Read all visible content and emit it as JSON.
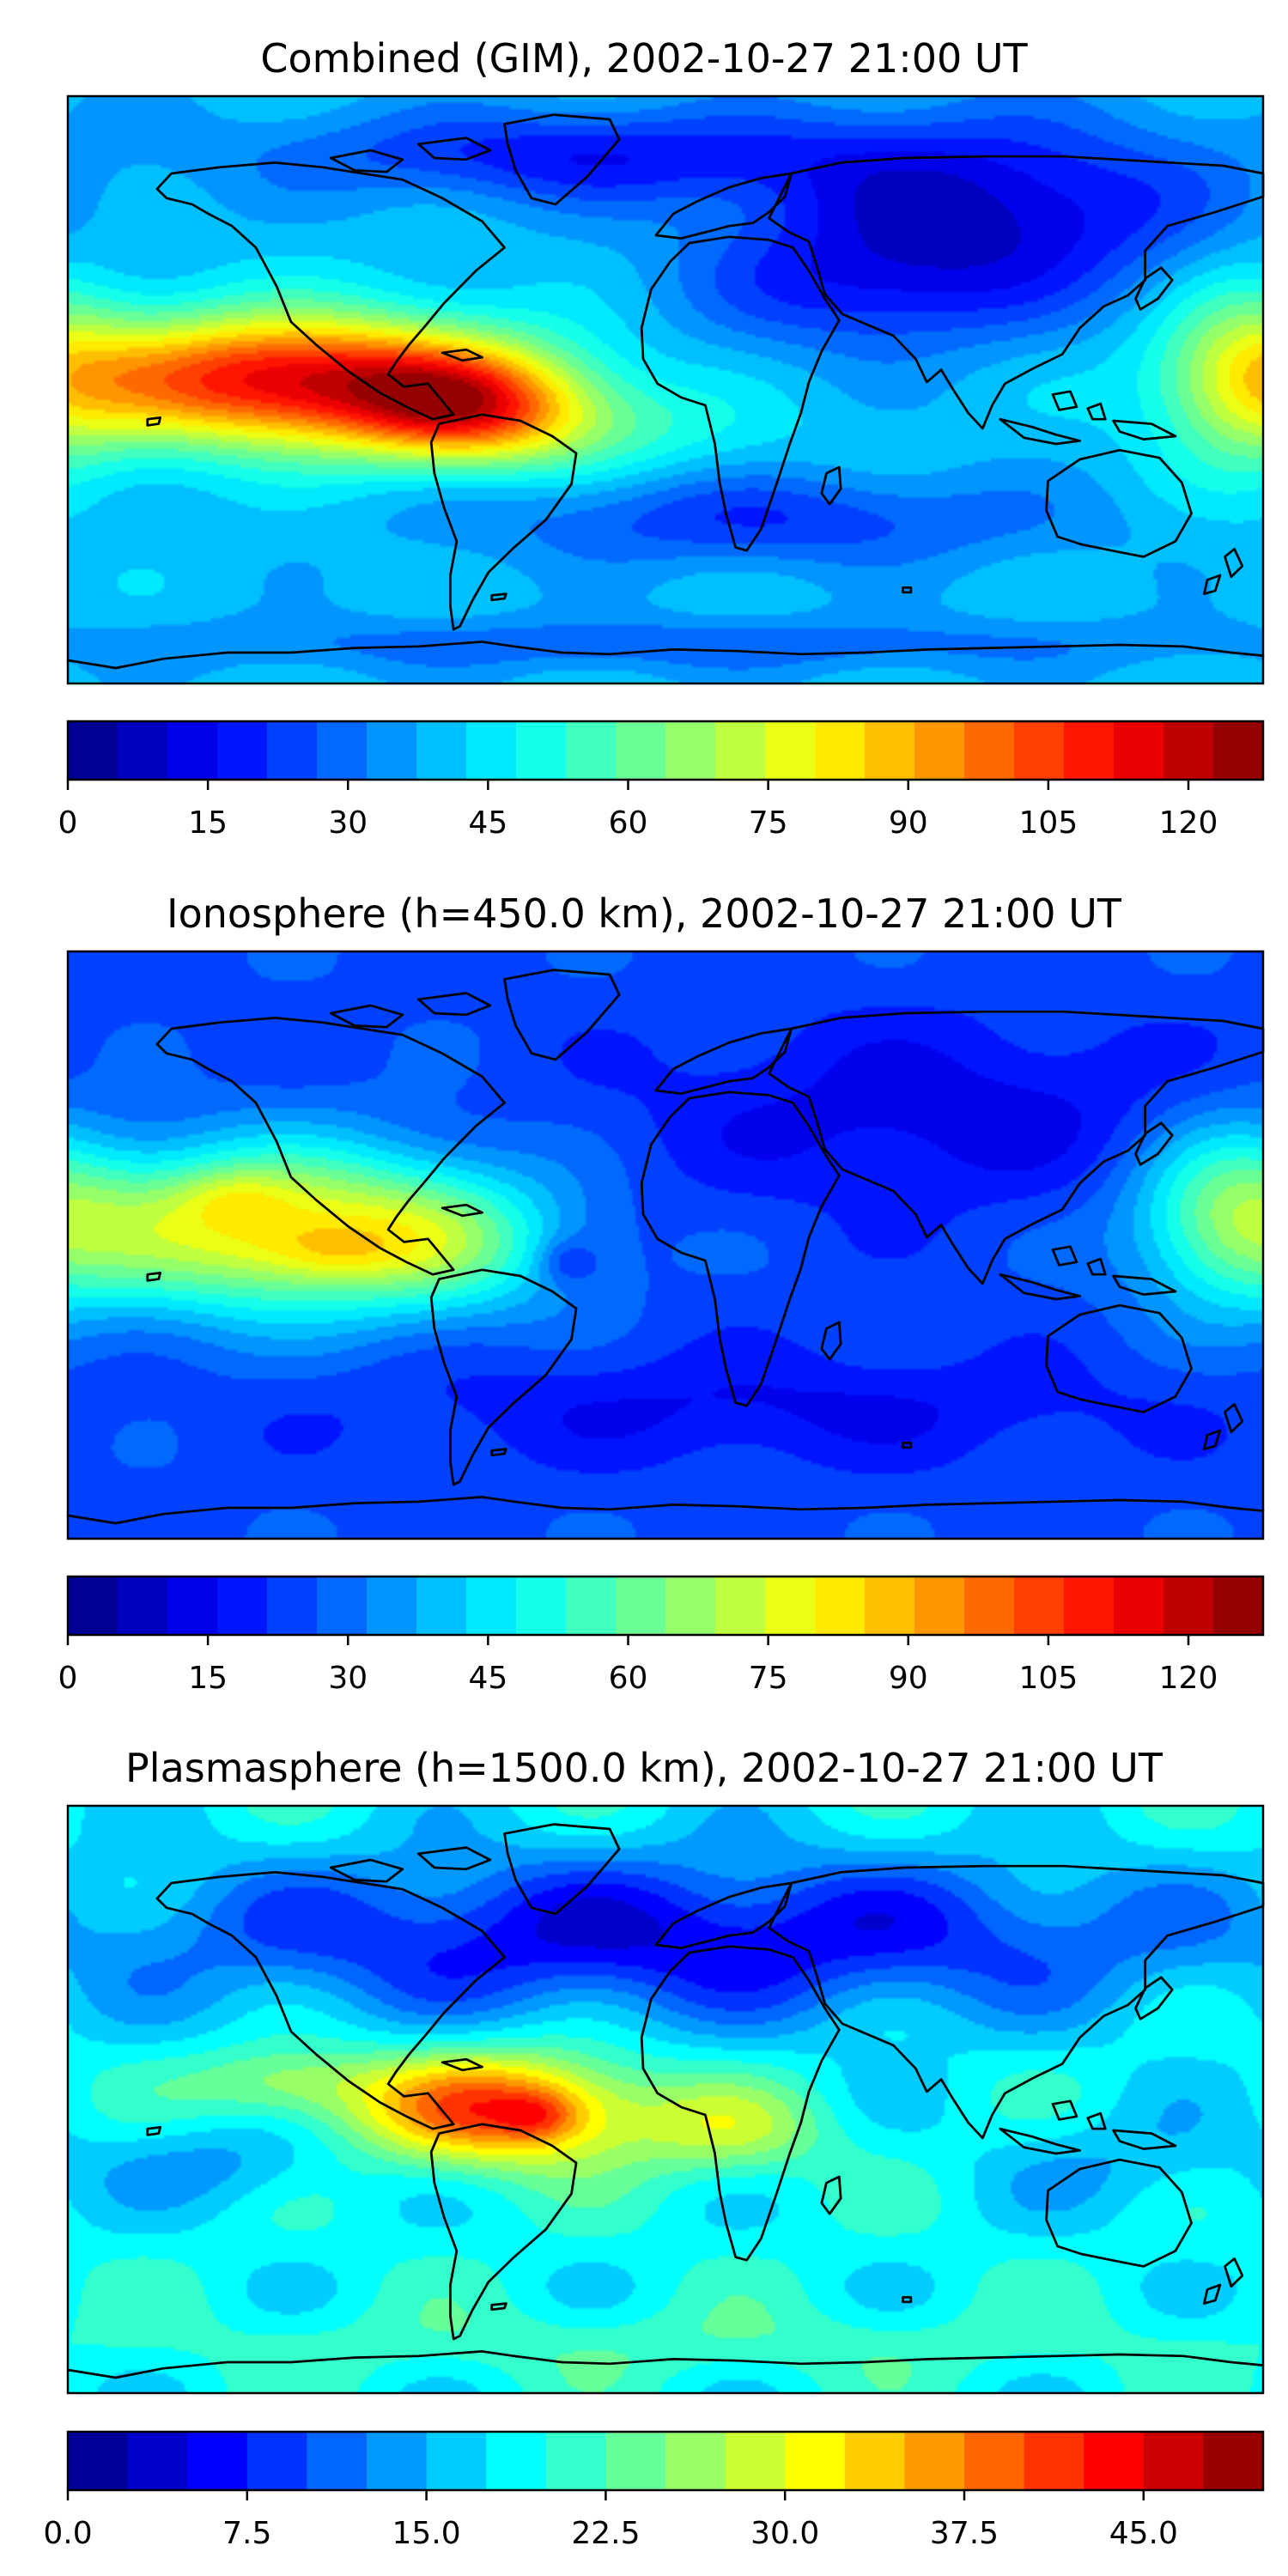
{
  "panels": [
    {
      "title": "Combined (GIM), 2002-10-27 21:00 UT",
      "colorbar": {
        "min": 0,
        "max": 128,
        "levels": 24,
        "ticks": [
          "0",
          "15",
          "30",
          "45",
          "60",
          "75",
          "90",
          "105",
          "120"
        ],
        "tick_values": [
          0,
          15,
          30,
          45,
          60,
          75,
          90,
          105,
          120
        ]
      },
      "field": {
        "background": 40,
        "blobs": [
          {
            "lon": -115,
            "lat": 3,
            "slon": 45,
            "slat": 14,
            "amp": 75
          },
          {
            "lon": -60,
            "lat": -5,
            "slon": 25,
            "slat": 12,
            "amp": 50
          },
          {
            "lon": -20,
            "lat": -12,
            "slon": 35,
            "slat": 10,
            "amp": 12
          },
          {
            "lon": 95,
            "lat": 55,
            "slon": 50,
            "slat": 20,
            "amp": -30
          },
          {
            "lon": 60,
            "lat": 30,
            "slon": 35,
            "slat": 14,
            "amp": -15
          },
          {
            "lon": -30,
            "lat": 72,
            "slon": 60,
            "slat": 10,
            "amp": -22
          },
          {
            "lon": 30,
            "lat": -40,
            "slon": 60,
            "slat": 10,
            "amp": -18
          },
          {
            "lon": 175,
            "lat": 5,
            "slon": 18,
            "slat": 22,
            "amp": 25
          },
          {
            "lon": 0,
            "lat": -78,
            "slon": 120,
            "slat": 6,
            "amp": -12
          }
        ]
      }
    },
    {
      "title": "Ionosphere  (h=450.0 km), 2002-10-27 21:00 UT",
      "colorbar": {
        "min": 0,
        "max": 128,
        "levels": 24,
        "ticks": [
          "0",
          "15",
          "30",
          "45",
          "60",
          "75",
          "90",
          "105",
          "120"
        ],
        "tick_values": [
          0,
          15,
          30,
          45,
          60,
          75,
          90,
          105,
          120
        ]
      },
      "field": {
        "background": 25,
        "blobs": [
          {
            "lon": -120,
            "lat": 5,
            "slon": 45,
            "slat": 18,
            "amp": 55
          },
          {
            "lon": -130,
            "lat": 15,
            "slon": 12,
            "slat": 6,
            "amp": 10
          },
          {
            "lon": -100,
            "lat": -2,
            "slon": 15,
            "slat": 6,
            "amp": 10
          },
          {
            "lon": -65,
            "lat": 0,
            "slon": 25,
            "slat": 15,
            "amp": 20
          },
          {
            "lon": -30,
            "lat": -5,
            "slon": 6,
            "slat": 5,
            "amp": -12
          },
          {
            "lon": 170,
            "lat": 10,
            "slon": 20,
            "slat": 20,
            "amp": 30
          },
          {
            "lon": 80,
            "lat": 40,
            "slon": 60,
            "slat": 20,
            "amp": -12
          },
          {
            "lon": 30,
            "lat": -50,
            "slon": 80,
            "slat": 12,
            "amp": -10
          }
        ]
      }
    },
    {
      "title": "Plasmasphere (h=1500.0 km), 2002-10-27 21:00 UT",
      "colorbar": {
        "min": 0,
        "max": 50,
        "levels": 20,
        "ticks": [
          "0.0",
          "7.5",
          "15.0",
          "22.5",
          "30.0",
          "37.5",
          "45.0"
        ],
        "tick_values": [
          0,
          7.5,
          15,
          22.5,
          30,
          37.5,
          45
        ]
      },
      "field": {
        "background": 19,
        "blobs": [
          {
            "lon": -50,
            "lat": -3,
            "slon": 30,
            "slat": 12,
            "amp": 22
          },
          {
            "lon": -38,
            "lat": -5,
            "slon": 8,
            "slat": 5,
            "amp": 6
          },
          {
            "lon": -115,
            "lat": 5,
            "slon": 20,
            "slat": 8,
            "amp": 8
          },
          {
            "lon": 20,
            "lat": -10,
            "slon": 20,
            "slat": 10,
            "amp": 8
          },
          {
            "lon": -130,
            "lat": -20,
            "slon": 25,
            "slat": 10,
            "amp": -5
          },
          {
            "lon": 0,
            "lat": 50,
            "slon": 120,
            "slat": 18,
            "amp": -14
          },
          {
            "lon": 140,
            "lat": -20,
            "slon": 30,
            "slat": 12,
            "amp": -4
          },
          {
            "lon": 0,
            "lat": -75,
            "slon": 120,
            "slat": 8,
            "amp": 3
          }
        ]
      }
    }
  ]
}
